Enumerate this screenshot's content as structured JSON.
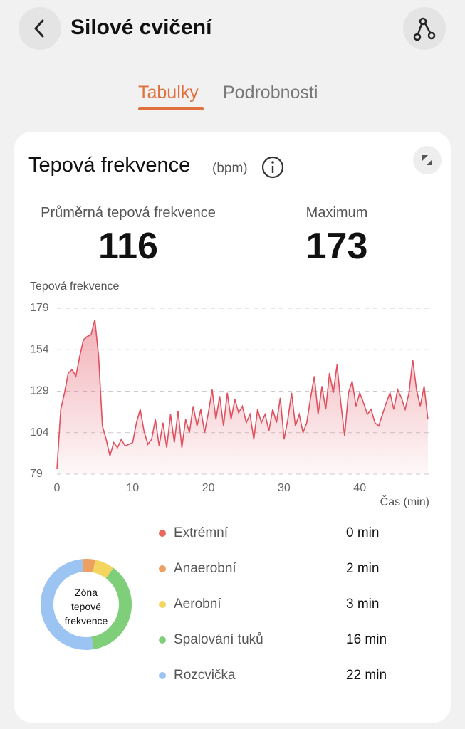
{
  "header": {
    "title": "Silové cvičení"
  },
  "tabs": [
    "Tabulky",
    "Podrobnosti"
  ],
  "card": {
    "title": "Tepová frekvence",
    "unit": "(bpm)",
    "stats": [
      {
        "label": "Průměrná tepová frekvence",
        "value": "116"
      },
      {
        "label": "Maximum",
        "value": "173"
      }
    ]
  },
  "chart_data": [
    {
      "type": "line",
      "ylabel": "Tepová frekvence",
      "xlabel": "Čas (min)",
      "color": "#e0505e",
      "x": [
        0,
        0.5,
        1,
        1.5,
        2,
        2.5,
        3,
        3.5,
        4,
        4.5,
        5,
        5.5,
        6,
        6.5,
        7,
        7.5,
        8,
        8.5,
        9,
        9.5,
        10,
        10.5,
        11,
        11.5,
        12,
        12.5,
        13,
        13.5,
        14,
        14.5,
        15,
        15.5,
        16,
        16.5,
        17,
        17.5,
        18,
        18.5,
        19,
        19.5,
        20,
        20.5,
        21,
        21.5,
        22,
        22.5,
        23,
        23.5,
        24,
        24.5,
        25,
        25.5,
        26,
        26.5,
        27,
        27.5,
        28,
        28.5,
        29,
        29.5,
        30,
        30.5,
        31,
        31.5,
        32,
        32.5,
        33,
        33.5,
        34,
        34.5,
        35,
        35.5,
        36,
        36.5,
        37,
        37.5,
        38,
        38.5,
        39,
        39.5,
        40,
        40.5,
        41,
        41.5,
        42,
        42.5,
        43,
        43.5,
        44,
        44.5,
        45,
        45.5,
        46,
        46.5,
        47,
        47.5,
        48,
        48.5,
        49
      ],
      "values": [
        82,
        118,
        128,
        140,
        142,
        138,
        150,
        160,
        162,
        163,
        172,
        150,
        108,
        100,
        90,
        98,
        95,
        100,
        96,
        97,
        98,
        110,
        118,
        105,
        97,
        100,
        112,
        96,
        110,
        95,
        115,
        98,
        117,
        95,
        112,
        104,
        120,
        108,
        118,
        104,
        116,
        130,
        112,
        126,
        108,
        128,
        112,
        124,
        116,
        120,
        110,
        115,
        100,
        118,
        110,
        115,
        105,
        118,
        110,
        125,
        100,
        112,
        128,
        108,
        115,
        104,
        110,
        125,
        138,
        115,
        132,
        118,
        140,
        128,
        145,
        122,
        102,
        128,
        135,
        120,
        128,
        122,
        115,
        118,
        110,
        108,
        115,
        122,
        128,
        118,
        130,
        125,
        118,
        128,
        148,
        130,
        120,
        132,
        112
      ],
      "xlim": [
        0,
        49.2
      ],
      "xticks": [
        0,
        10,
        20,
        30,
        40
      ],
      "ylim": [
        79,
        179
      ],
      "yticks": [
        79,
        104,
        129,
        154,
        179
      ],
      "grid": true
    },
    {
      "type": "donut",
      "center_label": "Zóna tepové frekvence",
      "categories": [
        "Extrémní",
        "Anaerobní",
        "Aerobní",
        "Spalování tuků",
        "Rozcvička"
      ],
      "values": [
        0,
        2,
        3,
        16,
        22
      ],
      "value_labels": [
        "0 min",
        "2 min",
        "3 min",
        "16 min",
        "22 min"
      ],
      "colors": [
        "#e8685a",
        "#eda062",
        "#f2d660",
        "#7fcf7a",
        "#9cc4f2"
      ]
    }
  ]
}
